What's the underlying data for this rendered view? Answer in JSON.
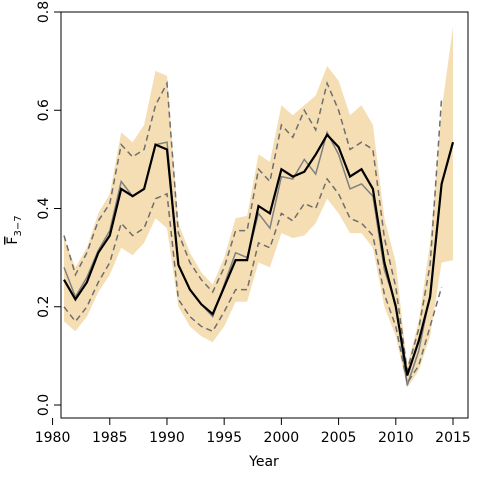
{
  "chart_data": {
    "type": "line",
    "title": "",
    "xlabel": "Year",
    "ylabel": "F",
    "ylabel_subscript": "3−7",
    "xlim": [
      1980,
      2016
    ],
    "ylim": [
      0.0,
      0.8
    ],
    "xticks": [
      1980,
      1985,
      1990,
      1995,
      2000,
      2005,
      2010,
      2015
    ],
    "yticks": [
      0.0,
      0.2,
      0.4,
      0.6,
      0.8
    ],
    "ytick_labels": [
      "0.0",
      "0.2",
      "0.4",
      "0.6",
      "0.8"
    ],
    "grid": false,
    "legend": "none",
    "colors": {
      "band": "#f5deb3",
      "main": "#000000",
      "dashed": "#6e6e6e",
      "grey_line": "#808080"
    },
    "x": [
      1981,
      1982,
      1983,
      1984,
      1985,
      1986,
      1987,
      1988,
      1989,
      1990,
      1991,
      1992,
      1993,
      1994,
      1995,
      1996,
      1997,
      1998,
      1999,
      2000,
      2001,
      2002,
      2003,
      2004,
      2005,
      2006,
      2007,
      2008,
      2009,
      2010,
      2011,
      2012,
      2013,
      2014,
      2015
    ],
    "band": {
      "upper": [
        0.34,
        0.28,
        0.32,
        0.39,
        0.43,
        0.555,
        0.535,
        0.57,
        0.68,
        0.67,
        0.37,
        0.31,
        0.27,
        0.245,
        0.3,
        0.38,
        0.385,
        0.51,
        0.495,
        0.61,
        0.59,
        0.61,
        0.63,
        0.69,
        0.66,
        0.59,
        0.61,
        0.57,
        0.38,
        0.29,
        0.08,
        0.17,
        0.33,
        0.6,
        0.77
      ],
      "lower": [
        0.17,
        0.15,
        0.18,
        0.23,
        0.265,
        0.32,
        0.305,
        0.33,
        0.38,
        0.36,
        0.2,
        0.16,
        0.14,
        0.128,
        0.16,
        0.21,
        0.21,
        0.29,
        0.28,
        0.35,
        0.34,
        0.345,
        0.37,
        0.42,
        0.39,
        0.35,
        0.35,
        0.32,
        0.2,
        0.14,
        0.035,
        0.07,
        0.14,
        0.29,
        0.295
      ]
    },
    "series": [
      {
        "name": "",
        "style": "solid",
        "values": [
          0.255,
          0.215,
          0.25,
          0.31,
          0.345,
          0.44,
          0.425,
          0.44,
          0.53,
          0.52,
          0.285,
          0.235,
          0.205,
          0.185,
          0.24,
          0.295,
          0.295,
          0.405,
          0.39,
          0.48,
          0.465,
          0.475,
          0.51,
          0.55,
          0.525,
          0.465,
          0.48,
          0.44,
          0.29,
          0.2,
          0.06,
          0.13,
          0.22,
          0.45,
          0.535
        ]
      },
      {
        "name": "",
        "style": "dashed",
        "values": [
          0.345,
          0.265,
          0.31,
          0.375,
          0.41,
          0.53,
          0.505,
          0.52,
          0.61,
          0.655,
          0.35,
          0.29,
          0.255,
          0.23,
          0.28,
          0.355,
          0.355,
          0.48,
          0.455,
          0.57,
          0.545,
          0.6,
          0.56,
          0.655,
          0.6,
          0.52,
          0.535,
          0.52,
          0.34,
          0.24,
          0.07,
          0.155,
          0.285,
          0.625,
          null
        ]
      },
      {
        "name": "",
        "style": "dashed",
        "values": [
          0.2,
          0.17,
          0.2,
          0.25,
          0.29,
          0.37,
          0.345,
          0.36,
          0.42,
          0.43,
          0.215,
          0.18,
          0.16,
          0.15,
          0.19,
          0.235,
          0.235,
          0.33,
          0.32,
          0.39,
          0.375,
          0.41,
          0.4,
          0.46,
          0.43,
          0.38,
          0.37,
          0.345,
          0.225,
          0.16,
          0.045,
          0.08,
          0.16,
          0.24,
          null
        ]
      },
      {
        "name": "",
        "style": "solid-grey",
        "values": [
          0.28,
          0.22,
          0.26,
          0.315,
          0.355,
          0.455,
          0.425,
          0.44,
          0.53,
          0.535,
          0.285,
          0.235,
          0.205,
          0.18,
          0.245,
          0.31,
          0.3,
          0.39,
          0.36,
          0.465,
          0.46,
          0.5,
          0.47,
          0.555,
          0.51,
          0.44,
          0.45,
          0.425,
          0.275,
          0.205,
          0.04,
          0.11,
          0.225,
          null,
          null
        ]
      }
    ]
  }
}
